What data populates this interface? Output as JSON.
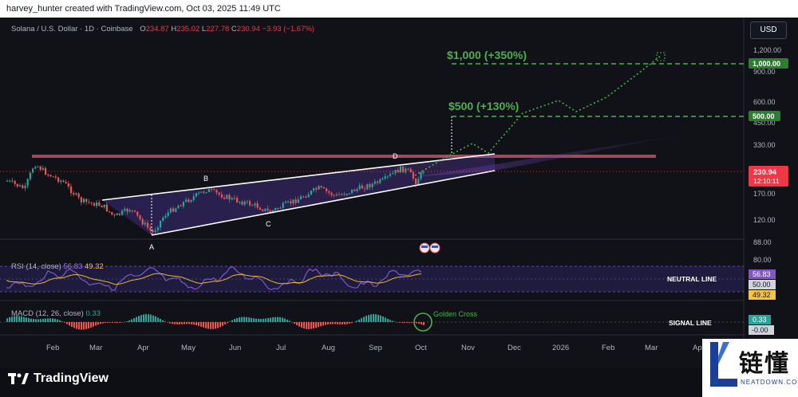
{
  "header": {
    "attribution": "harvey_hunter created with TradingView.com, Oct 03, 2025 11:49 UTC"
  },
  "symbol": {
    "name": "Solana / U.S. Dollar · 1D · Coinbase",
    "o_label": "O",
    "o": "234.87",
    "h_label": "H",
    "h": "235.02",
    "l_label": "L",
    "l": "227.78",
    "c_label": "C",
    "c": "230.94",
    "chg": "−3.93 (−1.67%)"
  },
  "currency": "USD",
  "price_axis": {
    "ticks": [
      "1,200.00",
      "900.00",
      "600.00",
      "450.00",
      "330.00",
      "170.00",
      "120.00",
      "88.00",
      "80.00"
    ],
    "current": "230.94",
    "countdown": "12:10:11",
    "target_tags": [
      "1,000.00",
      "500.00"
    ]
  },
  "targets": {
    "t1": "$1,000 (+350%)",
    "t2": "$500 (+130%)"
  },
  "points": [
    "A",
    "B",
    "C",
    "D"
  ],
  "rsi": {
    "label": "RSI (14, close)",
    "value1": "56.83",
    "value2": "49.32",
    "line_label": "NEUTRAL LINE",
    "tags": [
      "56.83",
      "50.00",
      "49.32"
    ]
  },
  "macd": {
    "label": "MACD (12, 26, close)",
    "value": "0.33",
    "signal_label": "SIGNAL LINE",
    "tags": [
      "0.33",
      "-0.00"
    ],
    "golden_cross": "Golden Cross"
  },
  "time_axis": [
    "Feb",
    "Mar",
    "Apr",
    "May",
    "Jun",
    "Jul",
    "Aug",
    "Sep",
    "Oct",
    "Nov",
    "Dec",
    "2026",
    "Feb",
    "Mar",
    "Apr"
  ],
  "brand": {
    "name": "TradingView"
  },
  "watermark": {
    "text": "链懂",
    "sub": "NEATDOWN.COM"
  },
  "colors": {
    "bull": "#26a69a",
    "bear": "#ef5350",
    "target": "#4caf50",
    "rsi": "#7e57c2",
    "ma": "#e8b923",
    "wedge": "#ffffff"
  }
}
